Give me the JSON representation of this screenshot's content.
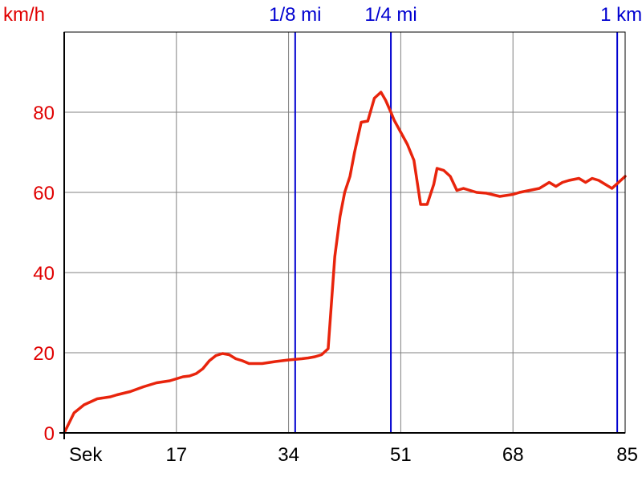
{
  "chart_data": {
    "type": "line",
    "xlabel": "Sek",
    "ylabel": "km/h",
    "xlim": [
      0,
      85
    ],
    "ylim": [
      0,
      100
    ],
    "x_ticks": [
      17,
      34,
      51,
      68,
      85
    ],
    "y_ticks": [
      0,
      20,
      40,
      60,
      80
    ],
    "grid": true,
    "colors": {
      "series": "#e8240c",
      "speed_axis_text": "#e00000",
      "distance_markers": "#0000d0",
      "grid": "#808080",
      "time_axis_text": "#000000"
    },
    "markers": [
      {
        "label": "1/8 mi",
        "x": 35.0
      },
      {
        "label": "1/4 mi",
        "x": 49.5
      },
      {
        "label": "1 km",
        "x": 83.8
      }
    ],
    "series": [
      {
        "x": [
          0,
          1.5,
          3,
          5,
          7,
          8,
          10,
          12,
          14,
          16,
          18,
          19,
          20,
          21,
          22,
          23,
          24,
          25,
          26,
          27,
          28,
          30,
          32,
          34,
          36,
          37,
          38,
          39,
          40,
          41,
          41.8,
          42.5,
          43.3,
          44,
          45,
          46,
          47,
          48,
          48.7,
          49.5,
          50,
          51,
          52,
          53,
          54,
          55,
          56,
          56.5,
          57.5,
          58.5,
          59.5,
          60.5,
          61.5,
          62.5,
          64,
          66,
          68,
          69,
          70.5,
          72,
          73.5,
          74.5,
          75.5,
          76.5,
          78,
          79,
          80,
          81,
          82,
          83,
          84,
          85
        ],
        "y": [
          0,
          5,
          7,
          8.5,
          9,
          9.5,
          10.3,
          11.5,
          12.5,
          13,
          14,
          14.2,
          14.8,
          16,
          18,
          19.3,
          19.8,
          19.5,
          18.5,
          18,
          17.3,
          17.3,
          17.8,
          18.2,
          18.5,
          18.7,
          19,
          19.5,
          21,
          44,
          54,
          60,
          64,
          70,
          77.5,
          77.8,
          83.5,
          85,
          83,
          80,
          78,
          75,
          72,
          68,
          57,
          57,
          62,
          66,
          65.5,
          64,
          60.5,
          61,
          60.5,
          60,
          59.8,
          59,
          59.5,
          60,
          60.5,
          61,
          62.5,
          61.5,
          62.5,
          63,
          63.5,
          62.5,
          63.5,
          63,
          62,
          61,
          62.5,
          64
        ]
      }
    ]
  }
}
